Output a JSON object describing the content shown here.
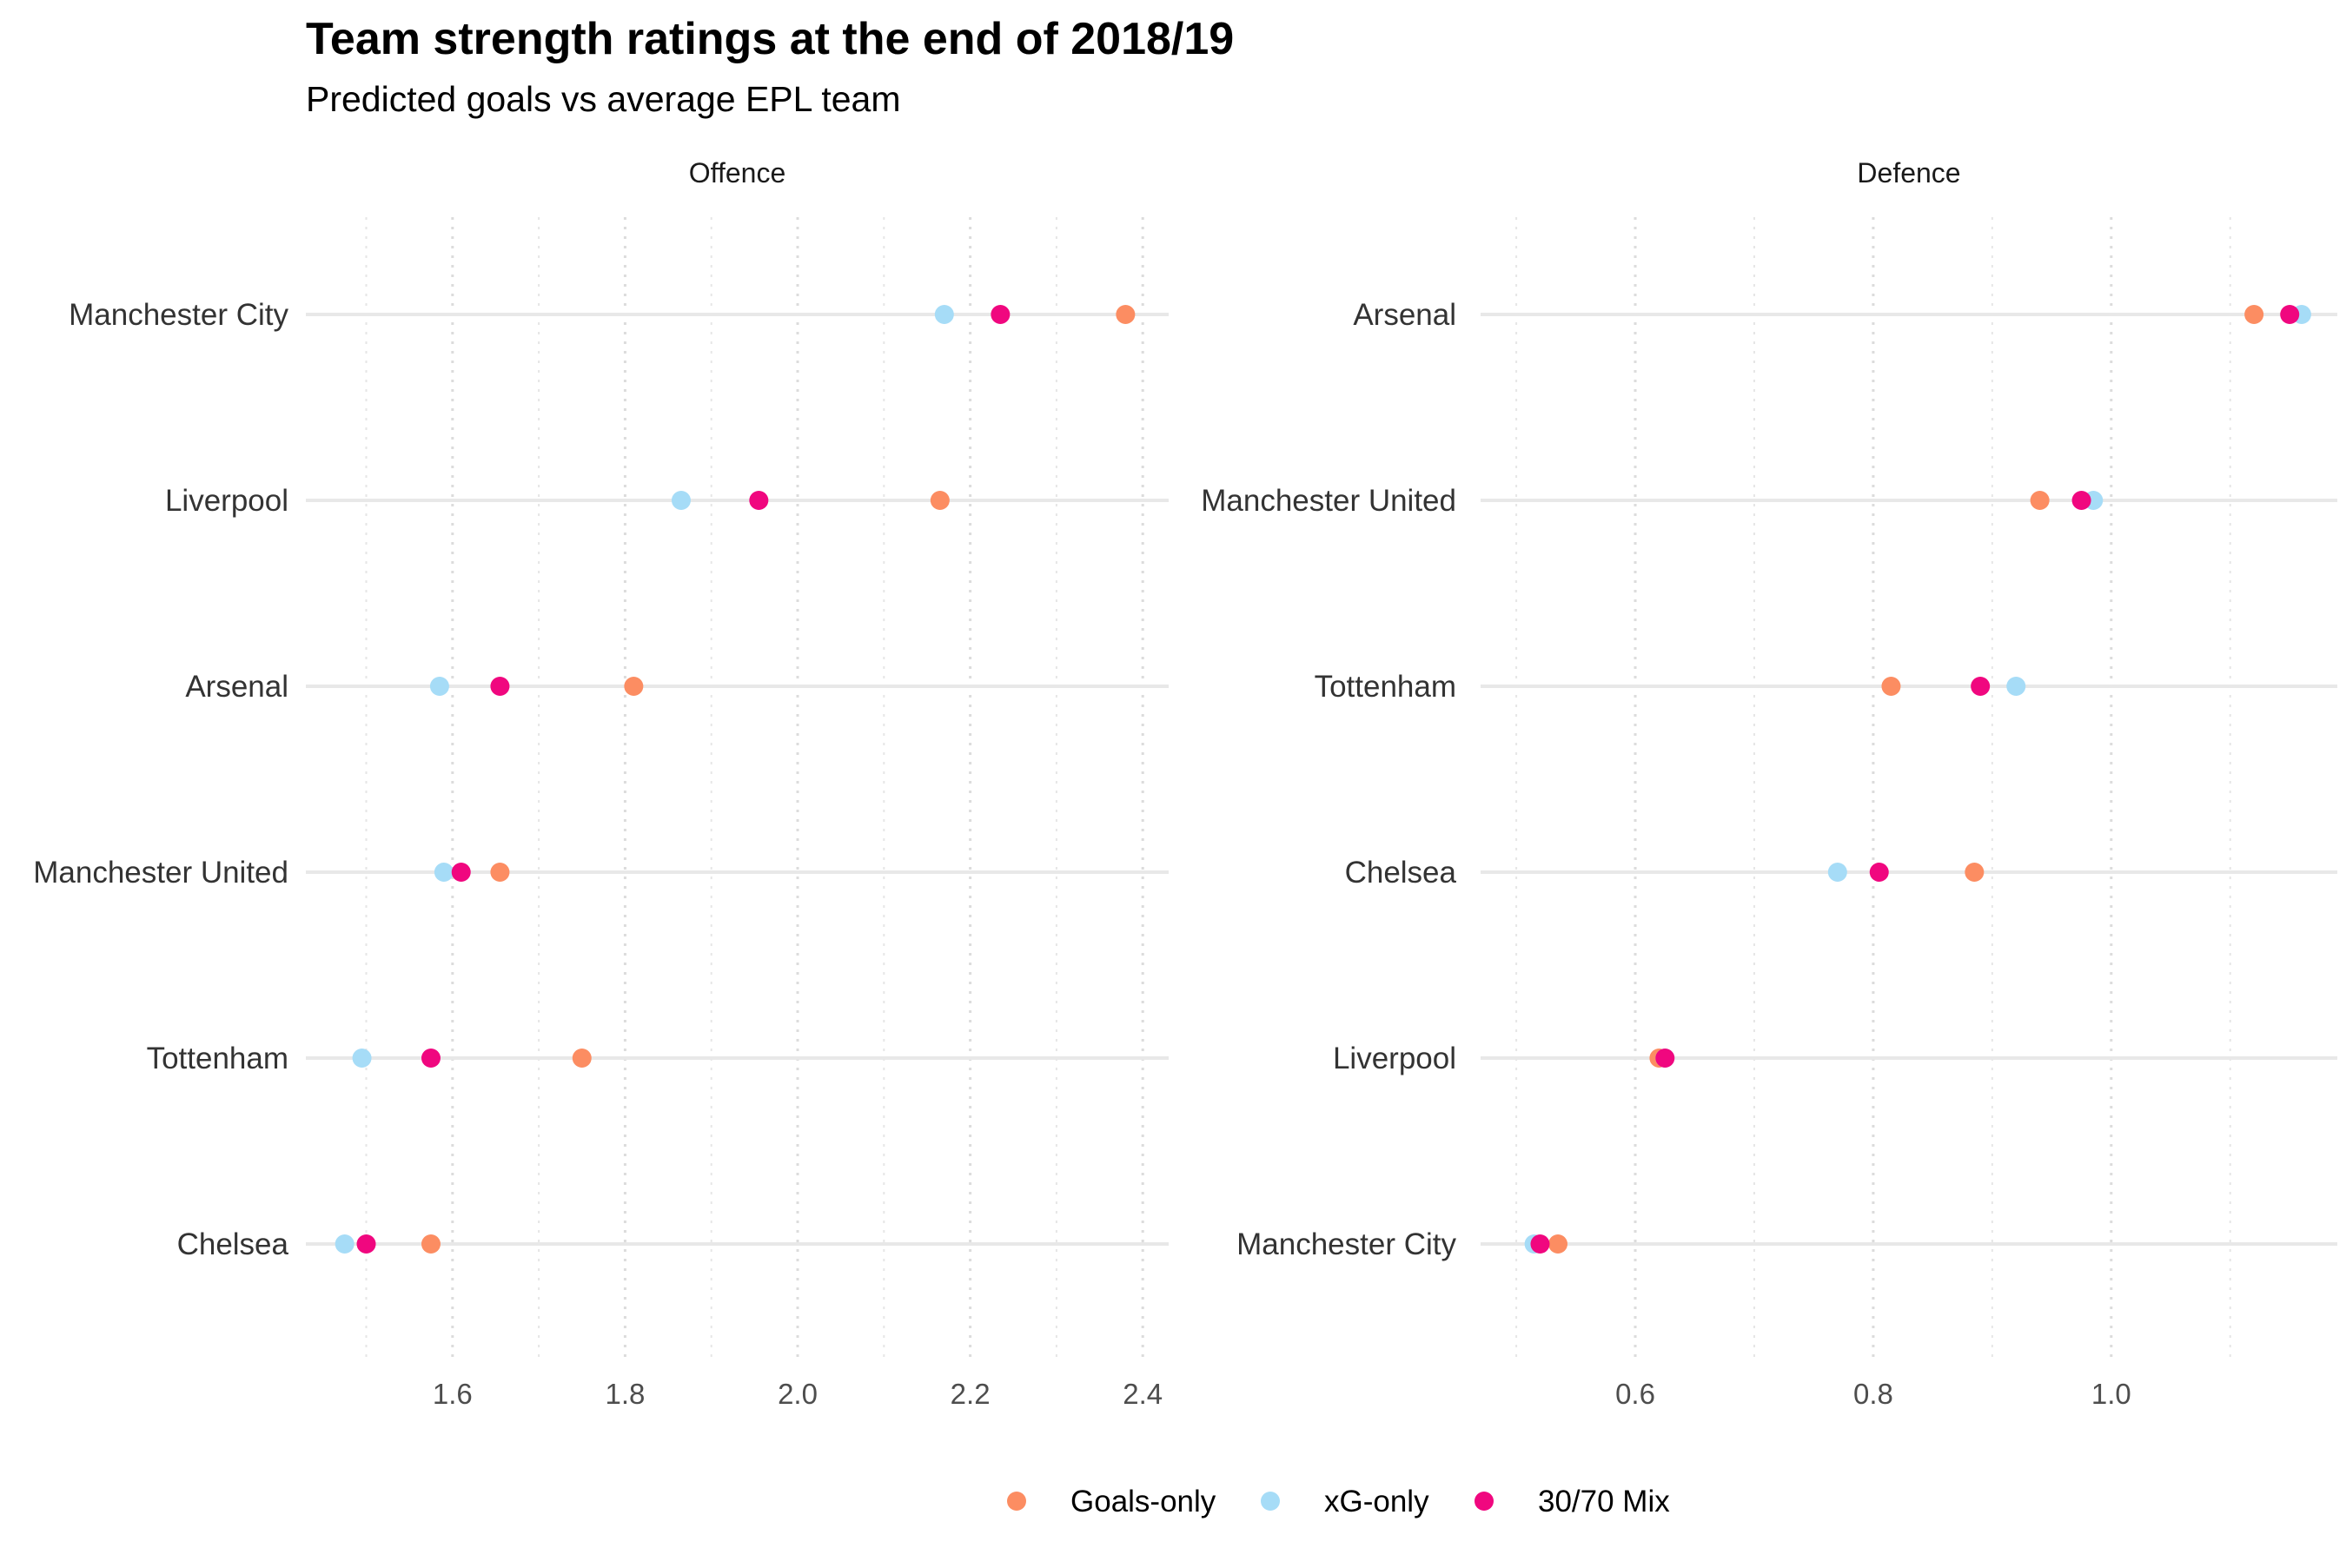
{
  "chart_data": {
    "type": "scatter",
    "title": "Team strength ratings at the end of 2018/19",
    "subtitle": "Predicted goals vs average EPL team",
    "colors": {
      "Goals-only": "#fc8d62",
      "xG-only": "#a6dcf7",
      "30/70 Mix": "#f0077f"
    },
    "series_names": [
      "Goals-only",
      "xG-only",
      "30/70 Mix"
    ],
    "legend_position": "bottom",
    "grid": true,
    "panels": [
      {
        "name": "Offence",
        "xlim": [
          1.43,
          2.43
        ],
        "ticks": [
          1.6,
          1.8,
          2.0,
          2.2,
          2.4
        ],
        "tick_labels": [
          "1.6",
          "1.8",
          "2.0",
          "2.2",
          "2.4"
        ],
        "teams": [
          "Manchester City",
          "Liverpool",
          "Arsenal",
          "Manchester United",
          "Tottenham",
          "Chelsea"
        ],
        "series": [
          {
            "name": "Goals-only",
            "values": [
              2.38,
              2.165,
              1.81,
              1.655,
              1.75,
              1.575
            ]
          },
          {
            "name": "xG-only",
            "values": [
              2.17,
              1.865,
              1.585,
              1.59,
              1.495,
              1.475
            ]
          },
          {
            "name": "30/70 Mix",
            "values": [
              2.235,
              1.955,
              1.655,
              1.61,
              1.575,
              1.5
            ]
          }
        ]
      },
      {
        "name": "Defence",
        "xlim": [
          0.47,
          1.19
        ],
        "ticks": [
          0.6,
          0.8,
          1.0
        ],
        "tick_labels": [
          "0.6",
          "0.8",
          "1.0"
        ],
        "teams": [
          "Arsenal",
          "Manchester United",
          "Tottenham",
          "Chelsea",
          "Liverpool",
          "Manchester City"
        ],
        "series": [
          {
            "name": "Goals-only",
            "values": [
              1.12,
              0.94,
              0.815,
              0.885,
              0.62,
              0.535
            ]
          },
          {
            "name": "xG-only",
            "values": [
              1.16,
              0.985,
              0.92,
              0.77,
              0.625,
              0.515
            ]
          },
          {
            "name": "30/70 Mix",
            "values": [
              1.15,
              0.975,
              0.89,
              0.805,
              0.625,
              0.52
            ]
          }
        ]
      }
    ]
  }
}
